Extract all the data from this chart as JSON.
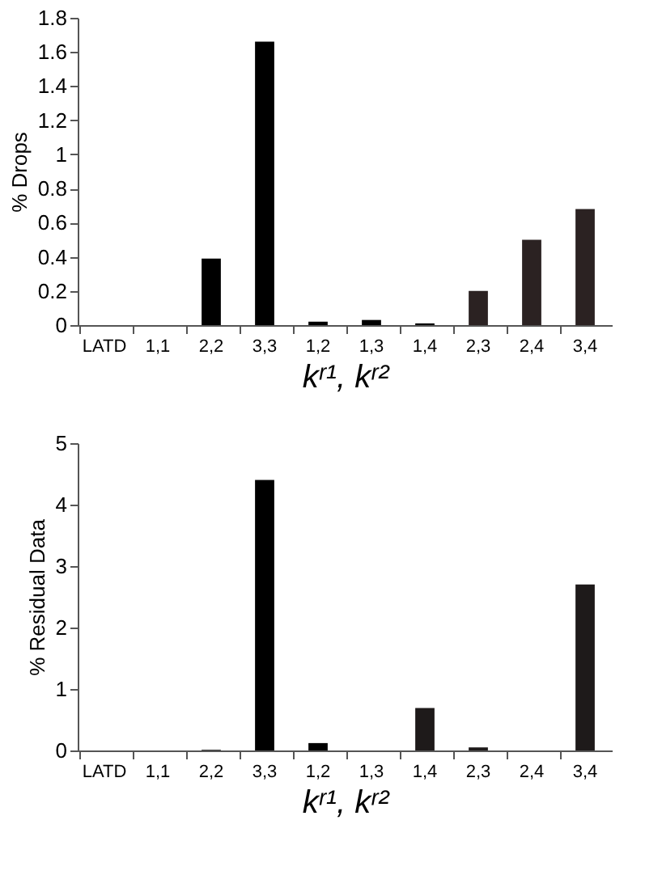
{
  "chart_data": [
    {
      "type": "bar",
      "ylabel": "% Drops",
      "xlabel": "kʳ¹, kʳ²",
      "categories": [
        "LATD",
        "1,1",
        "2,2",
        "3,3",
        "1,2",
        "1,3",
        "1,4",
        "2,3",
        "2,4",
        "3,4"
      ],
      "values": [
        0,
        0,
        0.39,
        1.66,
        0.02,
        0.03,
        0.01,
        0.2,
        0.5,
        0.68
      ],
      "colors": [
        "#000000",
        "#000000",
        "#000000",
        "#000000",
        "#000000",
        "#000000",
        "#000000",
        "#2b2222",
        "#2b2222",
        "#2b2222"
      ],
      "ylim": [
        0,
        1.8
      ],
      "yticks": [
        0,
        0.2,
        0.4,
        0.6,
        0.8,
        1,
        1.2,
        1.4,
        1.6,
        1.8
      ],
      "grid": false
    },
    {
      "type": "bar",
      "ylabel": "% Residual Data",
      "xlabel": "kʳ¹, kʳ²",
      "categories": [
        "LATD",
        "1,1",
        "2,2",
        "3,3",
        "1,2",
        "1,3",
        "1,4",
        "2,3",
        "2,4",
        "3,4"
      ],
      "values": [
        0,
        0,
        0.01,
        4.4,
        0.12,
        0,
        0.69,
        0.05,
        0,
        2.7
      ],
      "colors": [
        "#000000",
        "#000000",
        "#000000",
        "#000000",
        "#000000",
        "#000000",
        "#1e1a1a",
        "#1e1a1a",
        "#1e1a1a",
        "#1e1a1a"
      ],
      "ylim": [
        0,
        5
      ],
      "yticks": [
        0,
        1,
        2,
        3,
        4,
        5
      ],
      "grid": false
    }
  ]
}
